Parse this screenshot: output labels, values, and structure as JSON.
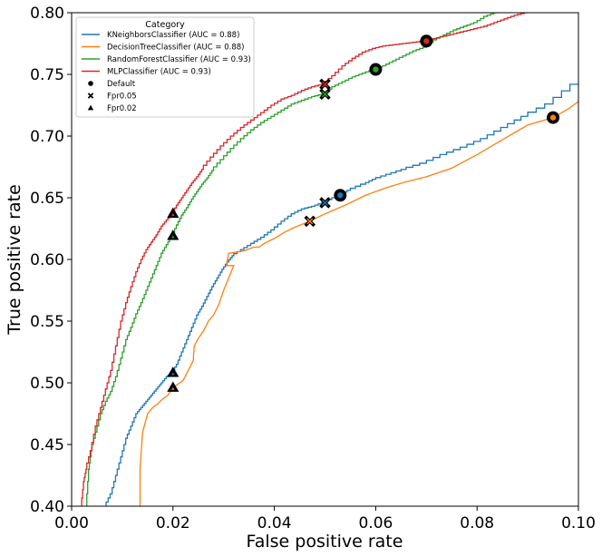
{
  "chart_data": {
    "type": "line",
    "title": "",
    "xlabel": "False positive rate",
    "ylabel": "True positive rate",
    "xlim": [
      0.0,
      0.1
    ],
    "ylim": [
      0.4,
      0.8
    ],
    "xticks": [
      0.0,
      0.02,
      0.04,
      0.06,
      0.08,
      0.1
    ],
    "xtick_labels": [
      "0.00",
      "0.02",
      "0.04",
      "0.06",
      "0.08",
      "0.10"
    ],
    "yticks": [
      0.4,
      0.45,
      0.5,
      0.55,
      0.6,
      0.65,
      0.7,
      0.75,
      0.8
    ],
    "ytick_labels": [
      "0.40",
      "0.45",
      "0.50",
      "0.55",
      "0.60",
      "0.65",
      "0.70",
      "0.75",
      "0.80"
    ],
    "grid": false,
    "legend": {
      "title": "Category",
      "placement": "top-left",
      "marker_entries": [
        {
          "label": "Default",
          "marker": "circle"
        },
        {
          "label": "Fpr0.05",
          "marker": "x"
        },
        {
          "label": "Fpr0.02",
          "marker": "triangle"
        }
      ]
    },
    "series": [
      {
        "name": "KNeighborsClassifier (AUC = 0.88)",
        "color": "#1f77b4",
        "step": true,
        "points": [
          [
            0.0068,
            0.4
          ],
          [
            0.008,
            0.41
          ],
          [
            0.009,
            0.425
          ],
          [
            0.01,
            0.44
          ],
          [
            0.011,
            0.455
          ],
          [
            0.012,
            0.465
          ],
          [
            0.013,
            0.475
          ],
          [
            0.014,
            0.48
          ],
          [
            0.015,
            0.485
          ],
          [
            0.016,
            0.49
          ],
          [
            0.017,
            0.495
          ],
          [
            0.018,
            0.5
          ],
          [
            0.019,
            0.505
          ],
          [
            0.02,
            0.508
          ],
          [
            0.021,
            0.515
          ],
          [
            0.022,
            0.525
          ],
          [
            0.023,
            0.535
          ],
          [
            0.024,
            0.545
          ],
          [
            0.025,
            0.555
          ],
          [
            0.026,
            0.562
          ],
          [
            0.027,
            0.57
          ],
          [
            0.028,
            0.578
          ],
          [
            0.029,
            0.585
          ],
          [
            0.03,
            0.592
          ],
          [
            0.031,
            0.598
          ],
          [
            0.032,
            0.603
          ],
          [
            0.034,
            0.608
          ],
          [
            0.036,
            0.613
          ],
          [
            0.038,
            0.618
          ],
          [
            0.04,
            0.624
          ],
          [
            0.042,
            0.631
          ],
          [
            0.044,
            0.637
          ],
          [
            0.046,
            0.641
          ],
          [
            0.048,
            0.643
          ],
          [
            0.05,
            0.646
          ],
          [
            0.052,
            0.65
          ],
          [
            0.053,
            0.652
          ],
          [
            0.055,
            0.656
          ],
          [
            0.058,
            0.661
          ],
          [
            0.06,
            0.665
          ],
          [
            0.063,
            0.669
          ],
          [
            0.066,
            0.673
          ],
          [
            0.07,
            0.678
          ],
          [
            0.074,
            0.685
          ],
          [
            0.078,
            0.691
          ],
          [
            0.082,
            0.698
          ],
          [
            0.086,
            0.707
          ],
          [
            0.09,
            0.716
          ],
          [
            0.095,
            0.726
          ],
          [
            0.1,
            0.742
          ]
        ],
        "markers": {
          "default": [
            0.053,
            0.652
          ],
          "fpr005": [
            0.05,
            0.646
          ],
          "fpr002": [
            0.02,
            0.508
          ]
        }
      },
      {
        "name": "DecisionTreeClassifier (AUC = 0.88)",
        "color": "#ff7f0e",
        "step": false,
        "points": [
          [
            0.0135,
            0.4
          ],
          [
            0.0135,
            0.43
          ],
          [
            0.014,
            0.46
          ],
          [
            0.015,
            0.475
          ],
          [
            0.016,
            0.48
          ],
          [
            0.017,
            0.483
          ],
          [
            0.018,
            0.487
          ],
          [
            0.019,
            0.49
          ],
          [
            0.02,
            0.496
          ],
          [
            0.022,
            0.502
          ],
          [
            0.023,
            0.51
          ],
          [
            0.024,
            0.518
          ],
          [
            0.0242,
            0.53
          ],
          [
            0.025,
            0.536
          ],
          [
            0.026,
            0.542
          ],
          [
            0.027,
            0.55
          ],
          [
            0.028,
            0.555
          ],
          [
            0.029,
            0.563
          ],
          [
            0.03,
            0.575
          ],
          [
            0.031,
            0.585
          ],
          [
            0.032,
            0.595
          ],
          [
            0.0305,
            0.595
          ],
          [
            0.031,
            0.605
          ],
          [
            0.034,
            0.607
          ],
          [
            0.036,
            0.61
          ],
          [
            0.037,
            0.61
          ],
          [
            0.038,
            0.613
          ],
          [
            0.04,
            0.617
          ],
          [
            0.042,
            0.622
          ],
          [
            0.044,
            0.626
          ],
          [
            0.047,
            0.631
          ],
          [
            0.05,
            0.637
          ],
          [
            0.054,
            0.644
          ],
          [
            0.058,
            0.652
          ],
          [
            0.062,
            0.658
          ],
          [
            0.066,
            0.663
          ],
          [
            0.07,
            0.667
          ],
          [
            0.075,
            0.674
          ],
          [
            0.08,
            0.685
          ],
          [
            0.085,
            0.697
          ],
          [
            0.09,
            0.709
          ],
          [
            0.095,
            0.715
          ],
          [
            0.098,
            0.722
          ],
          [
            0.1,
            0.728
          ]
        ],
        "markers": {
          "default": [
            0.095,
            0.715
          ],
          "fpr005": [
            0.047,
            0.631
          ],
          "fpr002": [
            0.02,
            0.496
          ]
        }
      },
      {
        "name": "RandomForestClassifier (AUC = 0.93)",
        "color": "#2ca02c",
        "step": true,
        "points": [
          [
            0.003,
            0.4
          ],
          [
            0.0035,
            0.43
          ],
          [
            0.004,
            0.445
          ],
          [
            0.005,
            0.46
          ],
          [
            0.006,
            0.475
          ],
          [
            0.007,
            0.485
          ],
          [
            0.008,
            0.493
          ],
          [
            0.009,
            0.505
          ],
          [
            0.01,
            0.52
          ],
          [
            0.011,
            0.535
          ],
          [
            0.012,
            0.545
          ],
          [
            0.013,
            0.556
          ],
          [
            0.014,
            0.565
          ],
          [
            0.015,
            0.575
          ],
          [
            0.016,
            0.585
          ],
          [
            0.017,
            0.595
          ],
          [
            0.018,
            0.605
          ],
          [
            0.019,
            0.612
          ],
          [
            0.02,
            0.619
          ],
          [
            0.021,
            0.628
          ],
          [
            0.022,
            0.636
          ],
          [
            0.023,
            0.642
          ],
          [
            0.024,
            0.649
          ],
          [
            0.025,
            0.655
          ],
          [
            0.026,
            0.661
          ],
          [
            0.027,
            0.666
          ],
          [
            0.028,
            0.672
          ],
          [
            0.03,
            0.681
          ],
          [
            0.032,
            0.69
          ],
          [
            0.034,
            0.698
          ],
          [
            0.036,
            0.705
          ],
          [
            0.038,
            0.711
          ],
          [
            0.04,
            0.716
          ],
          [
            0.042,
            0.721
          ],
          [
            0.044,
            0.726
          ],
          [
            0.046,
            0.729
          ],
          [
            0.048,
            0.732
          ],
          [
            0.05,
            0.734
          ],
          [
            0.052,
            0.74
          ],
          [
            0.054,
            0.744
          ],
          [
            0.056,
            0.748
          ],
          [
            0.058,
            0.751
          ],
          [
            0.06,
            0.754
          ],
          [
            0.062,
            0.757
          ],
          [
            0.064,
            0.761
          ],
          [
            0.066,
            0.765
          ],
          [
            0.068,
            0.769
          ],
          [
            0.07,
            0.772
          ],
          [
            0.072,
            0.778
          ],
          [
            0.074,
            0.782
          ],
          [
            0.076,
            0.786
          ],
          [
            0.078,
            0.789
          ],
          [
            0.08,
            0.792
          ],
          [
            0.082,
            0.797
          ],
          [
            0.084,
            0.8
          ]
        ],
        "markers": {
          "default": [
            0.06,
            0.754
          ],
          "fpr005": [
            0.05,
            0.734
          ],
          "fpr002": [
            0.02,
            0.619
          ]
        }
      },
      {
        "name": "MLPClassifier (AUC = 0.93)",
        "color": "#d62728",
        "step": true,
        "points": [
          [
            0.002,
            0.4
          ],
          [
            0.0025,
            0.42
          ],
          [
            0.003,
            0.43
          ],
          [
            0.004,
            0.445
          ],
          [
            0.005,
            0.465
          ],
          [
            0.006,
            0.48
          ],
          [
            0.007,
            0.495
          ],
          [
            0.008,
            0.51
          ],
          [
            0.009,
            0.53
          ],
          [
            0.01,
            0.55
          ],
          [
            0.011,
            0.565
          ],
          [
            0.012,
            0.578
          ],
          [
            0.013,
            0.59
          ],
          [
            0.014,
            0.6
          ],
          [
            0.015,
            0.608
          ],
          [
            0.016,
            0.614
          ],
          [
            0.017,
            0.62
          ],
          [
            0.018,
            0.627
          ],
          [
            0.019,
            0.632
          ],
          [
            0.02,
            0.637
          ],
          [
            0.021,
            0.644
          ],
          [
            0.022,
            0.65
          ],
          [
            0.023,
            0.656
          ],
          [
            0.024,
            0.662
          ],
          [
            0.025,
            0.667
          ],
          [
            0.026,
            0.673
          ],
          [
            0.028,
            0.683
          ],
          [
            0.03,
            0.692
          ],
          [
            0.032,
            0.7
          ],
          [
            0.034,
            0.707
          ],
          [
            0.036,
            0.713
          ],
          [
            0.038,
            0.719
          ],
          [
            0.04,
            0.725
          ],
          [
            0.042,
            0.73
          ],
          [
            0.044,
            0.733
          ],
          [
            0.046,
            0.737
          ],
          [
            0.048,
            0.74
          ],
          [
            0.05,
            0.742
          ],
          [
            0.052,
            0.749
          ],
          [
            0.054,
            0.757
          ],
          [
            0.056,
            0.763
          ],
          [
            0.058,
            0.768
          ],
          [
            0.06,
            0.771
          ],
          [
            0.062,
            0.773
          ],
          [
            0.064,
            0.774
          ],
          [
            0.066,
            0.775
          ],
          [
            0.068,
            0.776
          ],
          [
            0.07,
            0.777
          ],
          [
            0.072,
            0.779
          ],
          [
            0.074,
            0.781
          ],
          [
            0.076,
            0.783
          ],
          [
            0.078,
            0.785
          ],
          [
            0.08,
            0.787
          ],
          [
            0.082,
            0.789
          ],
          [
            0.084,
            0.792
          ],
          [
            0.086,
            0.795
          ],
          [
            0.088,
            0.798
          ],
          [
            0.09,
            0.8
          ]
        ],
        "markers": {
          "default": [
            0.07,
            0.777
          ],
          "fpr005": [
            0.05,
            0.742
          ],
          "fpr002": [
            0.02,
            0.637
          ]
        }
      }
    ]
  }
}
